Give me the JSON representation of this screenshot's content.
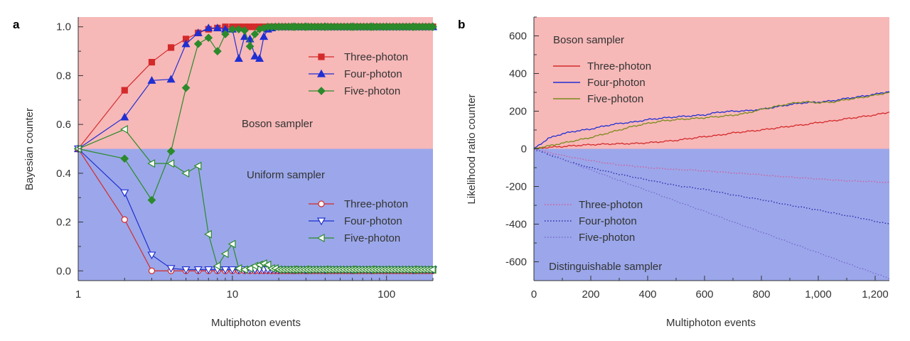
{
  "chart_data": [
    {
      "panel": "a",
      "type": "line",
      "xlabel": "Multiphoton events",
      "ylabel": "Bayesian counter",
      "xscale": "log",
      "xlim": [
        1,
        200
      ],
      "ylim": [
        -0.04,
        1.04
      ],
      "xticks": [
        1,
        10,
        100
      ],
      "xtick_labels": [
        "1",
        "10",
        "100"
      ],
      "yticks": [
        0.0,
        0.2,
        0.4,
        0.6,
        0.8,
        1.0
      ],
      "ytick_labels": [
        "0.0",
        "0.2",
        "0.4",
        "0.6",
        "0.8",
        "1.0"
      ],
      "regions": [
        {
          "label": "Boson sampler",
          "color": "#f7b8b8",
          "y_range": [
            0.5,
            1.04
          ]
        },
        {
          "label": "Uniform sampler",
          "color": "#9ba7ea",
          "y_range": [
            -0.04,
            0.5
          ]
        }
      ],
      "legend_placement": [
        "upper-right",
        "lower-right"
      ],
      "series": [
        {
          "name": "Three-photon",
          "group": "Boson sampler",
          "color": "#d42a2a",
          "marker": "square",
          "fill": "filled",
          "x": [
            1,
            2,
            3,
            4,
            5,
            6,
            7,
            8,
            9,
            10,
            11,
            12,
            13,
            14,
            15,
            16,
            17,
            18,
            19,
            20,
            25,
            30,
            40,
            60,
            80,
            100,
            150,
            200
          ],
          "y": [
            0.5,
            0.74,
            0.855,
            0.915,
            0.95,
            0.975,
            0.99,
            0.995,
            1,
            1,
            1,
            1,
            1,
            1,
            1,
            1,
            1,
            1,
            1,
            1,
            1,
            1,
            1,
            1,
            1,
            1,
            1,
            1
          ]
        },
        {
          "name": "Four-photon",
          "group": "Boson sampler",
          "color": "#1f2fd2",
          "marker": "triangle-up",
          "fill": "filled",
          "x": [
            1,
            2,
            3,
            4,
            5,
            6,
            7,
            8,
            9,
            10,
            11,
            12,
            13,
            14,
            15,
            16,
            17,
            18,
            19,
            20,
            25,
            30,
            40,
            60,
            80,
            100,
            150,
            200
          ],
          "y": [
            0.5,
            0.63,
            0.78,
            0.785,
            0.93,
            0.975,
            0.995,
            0.995,
            0.99,
            0.99,
            0.87,
            0.96,
            0.95,
            0.88,
            0.87,
            0.96,
            0.99,
            0.995,
            1,
            1,
            1,
            1,
            1,
            1,
            1,
            1,
            1,
            1
          ]
        },
        {
          "name": "Five-photon",
          "group": "Boson sampler",
          "color": "#2b8a2b",
          "marker": "diamond",
          "fill": "filled",
          "x": [
            1,
            2,
            3,
            4,
            5,
            6,
            7,
            8,
            9,
            10,
            11,
            12,
            13,
            14,
            15,
            16,
            17,
            18,
            19,
            20,
            25,
            30,
            40,
            60,
            80,
            100,
            150,
            200
          ],
          "y": [
            0.5,
            0.46,
            0.29,
            0.49,
            0.75,
            0.93,
            0.955,
            0.9,
            0.97,
            0.99,
            0.99,
            0.985,
            0.92,
            0.97,
            0.99,
            0.995,
            1,
            1,
            1,
            1,
            1,
            1,
            1,
            1,
            1,
            1,
            1,
            1
          ]
        },
        {
          "name": "Three-photon",
          "group": "Uniform sampler",
          "color": "#d42a2a",
          "marker": "circle",
          "fill": "open",
          "x": [
            1,
            2,
            3,
            4,
            5,
            6,
            7,
            8,
            9,
            10,
            11,
            12,
            13,
            14,
            15,
            16,
            17,
            18,
            19,
            20,
            25,
            30,
            40,
            60,
            80,
            100,
            150,
            200
          ],
          "y": [
            0.5,
            0.21,
            0.0,
            0.0,
            0.0,
            0.0,
            0.0,
            0.0,
            0.0,
            0.0,
            0.0,
            0.0,
            0.0,
            0.0,
            0.0,
            0.0,
            0.0,
            0.0,
            0.0,
            0.0,
            0.0,
            0.0,
            0.0,
            0.0,
            0.0,
            0.0,
            0.0,
            0.0
          ]
        },
        {
          "name": "Four-photon",
          "group": "Uniform sampler",
          "color": "#1f2fd2",
          "marker": "triangle-down",
          "fill": "open",
          "x": [
            1,
            2,
            3,
            4,
            5,
            6,
            7,
            8,
            9,
            10,
            11,
            12,
            13,
            14,
            15,
            16,
            17,
            18,
            19,
            20,
            25,
            30,
            40,
            60,
            80,
            100,
            150,
            200
          ],
          "y": [
            0.5,
            0.32,
            0.065,
            0.01,
            0.005,
            0.005,
            0.005,
            0.005,
            0.005,
            0.005,
            0.005,
            0.005,
            0.005,
            0.005,
            0.005,
            0.005,
            0.005,
            0.005,
            0.005,
            0.005,
            0.005,
            0.005,
            0.005,
            0.005,
            0.005,
            0.005,
            0.005,
            0.005
          ]
        },
        {
          "name": "Five-photon",
          "group": "Uniform sampler",
          "color": "#2b8a2b",
          "marker": "triangle-left",
          "fill": "open",
          "x": [
            1,
            2,
            3,
            4,
            5,
            6,
            7,
            8,
            9,
            10,
            11,
            12,
            13,
            14,
            15,
            16,
            17,
            18,
            19,
            20,
            25,
            30,
            40,
            60,
            80,
            100,
            150,
            200
          ],
          "y": [
            0.5,
            0.58,
            0.44,
            0.44,
            0.4,
            0.43,
            0.15,
            0.02,
            0.07,
            0.11,
            0.01,
            0.005,
            0.01,
            0.02,
            0.025,
            0.03,
            0.025,
            0.01,
            0.01,
            0.005,
            0.005,
            0.005,
            0.005,
            0.005,
            0.005,
            0.005,
            0.005,
            0.005
          ]
        }
      ]
    },
    {
      "panel": "b",
      "type": "line",
      "xlabel": "Multiphoton events",
      "ylabel": "Likelihood ratio counter",
      "xlim": [
        0,
        1250
      ],
      "ylim": [
        -700,
        700
      ],
      "xticks": [
        0,
        200,
        400,
        600,
        800,
        1000,
        1200
      ],
      "xtick_labels": [
        "0",
        "200",
        "400",
        "600",
        "800",
        "1,000",
        "1,200"
      ],
      "yticks": [
        -600,
        -400,
        -200,
        0,
        200,
        400,
        600
      ],
      "ytick_labels": [
        "-600",
        "-400",
        "-200",
        "0",
        "200",
        "400",
        "600"
      ],
      "regions": [
        {
          "label": "Boson sampler",
          "color": "#f7b8b8",
          "y_range": [
            0,
            700
          ]
        },
        {
          "label": "Distinguishable sampler",
          "color": "#9ba7ea",
          "y_range": [
            -700,
            0
          ]
        }
      ],
      "legend_placement": [
        "upper-left",
        "lower-left"
      ],
      "series": [
        {
          "name": "Three-photon",
          "group": "Boson sampler",
          "color": "#d42a2a",
          "style": "solid",
          "x": [
            0,
            50,
            100,
            150,
            200,
            250,
            300,
            350,
            400,
            450,
            500,
            550,
            600,
            650,
            700,
            750,
            800,
            850,
            900,
            950,
            1000,
            1050,
            1100,
            1150,
            1200,
            1250
          ],
          "y": [
            0,
            8,
            12,
            18,
            22,
            25,
            27,
            28,
            32,
            38,
            45,
            55,
            65,
            72,
            85,
            92,
            100,
            110,
            120,
            128,
            140,
            148,
            160,
            170,
            180,
            195
          ]
        },
        {
          "name": "Four-photon",
          "group": "Boson sampler",
          "color": "#1f2fd2",
          "style": "solid",
          "x": [
            0,
            50,
            100,
            150,
            200,
            250,
            300,
            350,
            400,
            450,
            500,
            550,
            600,
            650,
            700,
            750,
            800,
            850,
            900,
            950,
            1000,
            1050,
            1100,
            1150,
            1200,
            1250
          ],
          "y": [
            0,
            55,
            80,
            95,
            105,
            122,
            135,
            142,
            155,
            163,
            170,
            175,
            180,
            195,
            200,
            202,
            210,
            222,
            235,
            245,
            248,
            255,
            268,
            278,
            290,
            305
          ]
        },
        {
          "name": "Five-photon",
          "group": "Boson sampler",
          "color": "#7a8a1a",
          "style": "solid",
          "x": [
            0,
            50,
            100,
            150,
            200,
            250,
            300,
            350,
            400,
            450,
            500,
            550,
            600,
            650,
            700,
            750,
            800,
            850,
            900,
            950,
            1000,
            1050,
            1100,
            1150,
            1200,
            1250
          ],
          "y": [
            0,
            15,
            30,
            45,
            60,
            80,
            100,
            120,
            135,
            148,
            155,
            160,
            165,
            172,
            178,
            190,
            210,
            225,
            240,
            250,
            245,
            248,
            262,
            272,
            285,
            300
          ]
        },
        {
          "name": "Three-photon",
          "group": "Distinguishable sampler",
          "color": "#d25a9a",
          "style": "dotted",
          "x": [
            0,
            50,
            100,
            150,
            200,
            250,
            300,
            350,
            400,
            450,
            500,
            550,
            600,
            650,
            700,
            750,
            800,
            850,
            900,
            950,
            1000,
            1050,
            1100,
            1150,
            1200,
            1250
          ],
          "y": [
            0,
            -18,
            -35,
            -50,
            -62,
            -75,
            -85,
            -92,
            -100,
            -105,
            -110,
            -112,
            -118,
            -122,
            -128,
            -132,
            -138,
            -145,
            -150,
            -155,
            -160,
            -165,
            -170,
            -172,
            -175,
            -180
          ]
        },
        {
          "name": "Four-photon",
          "group": "Distinguishable sampler",
          "color": "#2a2ab0",
          "style": "dotted",
          "x": [
            0,
            50,
            100,
            150,
            200,
            250,
            300,
            350,
            400,
            450,
            500,
            550,
            600,
            650,
            700,
            750,
            800,
            850,
            900,
            950,
            1000,
            1050,
            1100,
            1150,
            1200,
            1250
          ],
          "y": [
            0,
            -30,
            -55,
            -80,
            -100,
            -118,
            -135,
            -150,
            -165,
            -180,
            -195,
            -205,
            -215,
            -230,
            -245,
            -258,
            -270,
            -285,
            -300,
            -312,
            -325,
            -340,
            -355,
            -368,
            -385,
            -400
          ]
        },
        {
          "name": "Five-photon",
          "group": "Distinguishable sampler",
          "color": "#7a6ad0",
          "style": "dotted",
          "x": [
            0,
            50,
            100,
            150,
            200,
            250,
            300,
            350,
            400,
            450,
            500,
            550,
            600,
            650,
            700,
            750,
            800,
            850,
            900,
            950,
            1000,
            1050,
            1100,
            1150,
            1200,
            1250
          ],
          "y": [
            0,
            -25,
            -55,
            -85,
            -112,
            -140,
            -168,
            -195,
            -222,
            -250,
            -278,
            -305,
            -332,
            -360,
            -388,
            -415,
            -442,
            -470,
            -498,
            -525,
            -552,
            -580,
            -608,
            -635,
            -662,
            -690
          ]
        }
      ]
    }
  ]
}
